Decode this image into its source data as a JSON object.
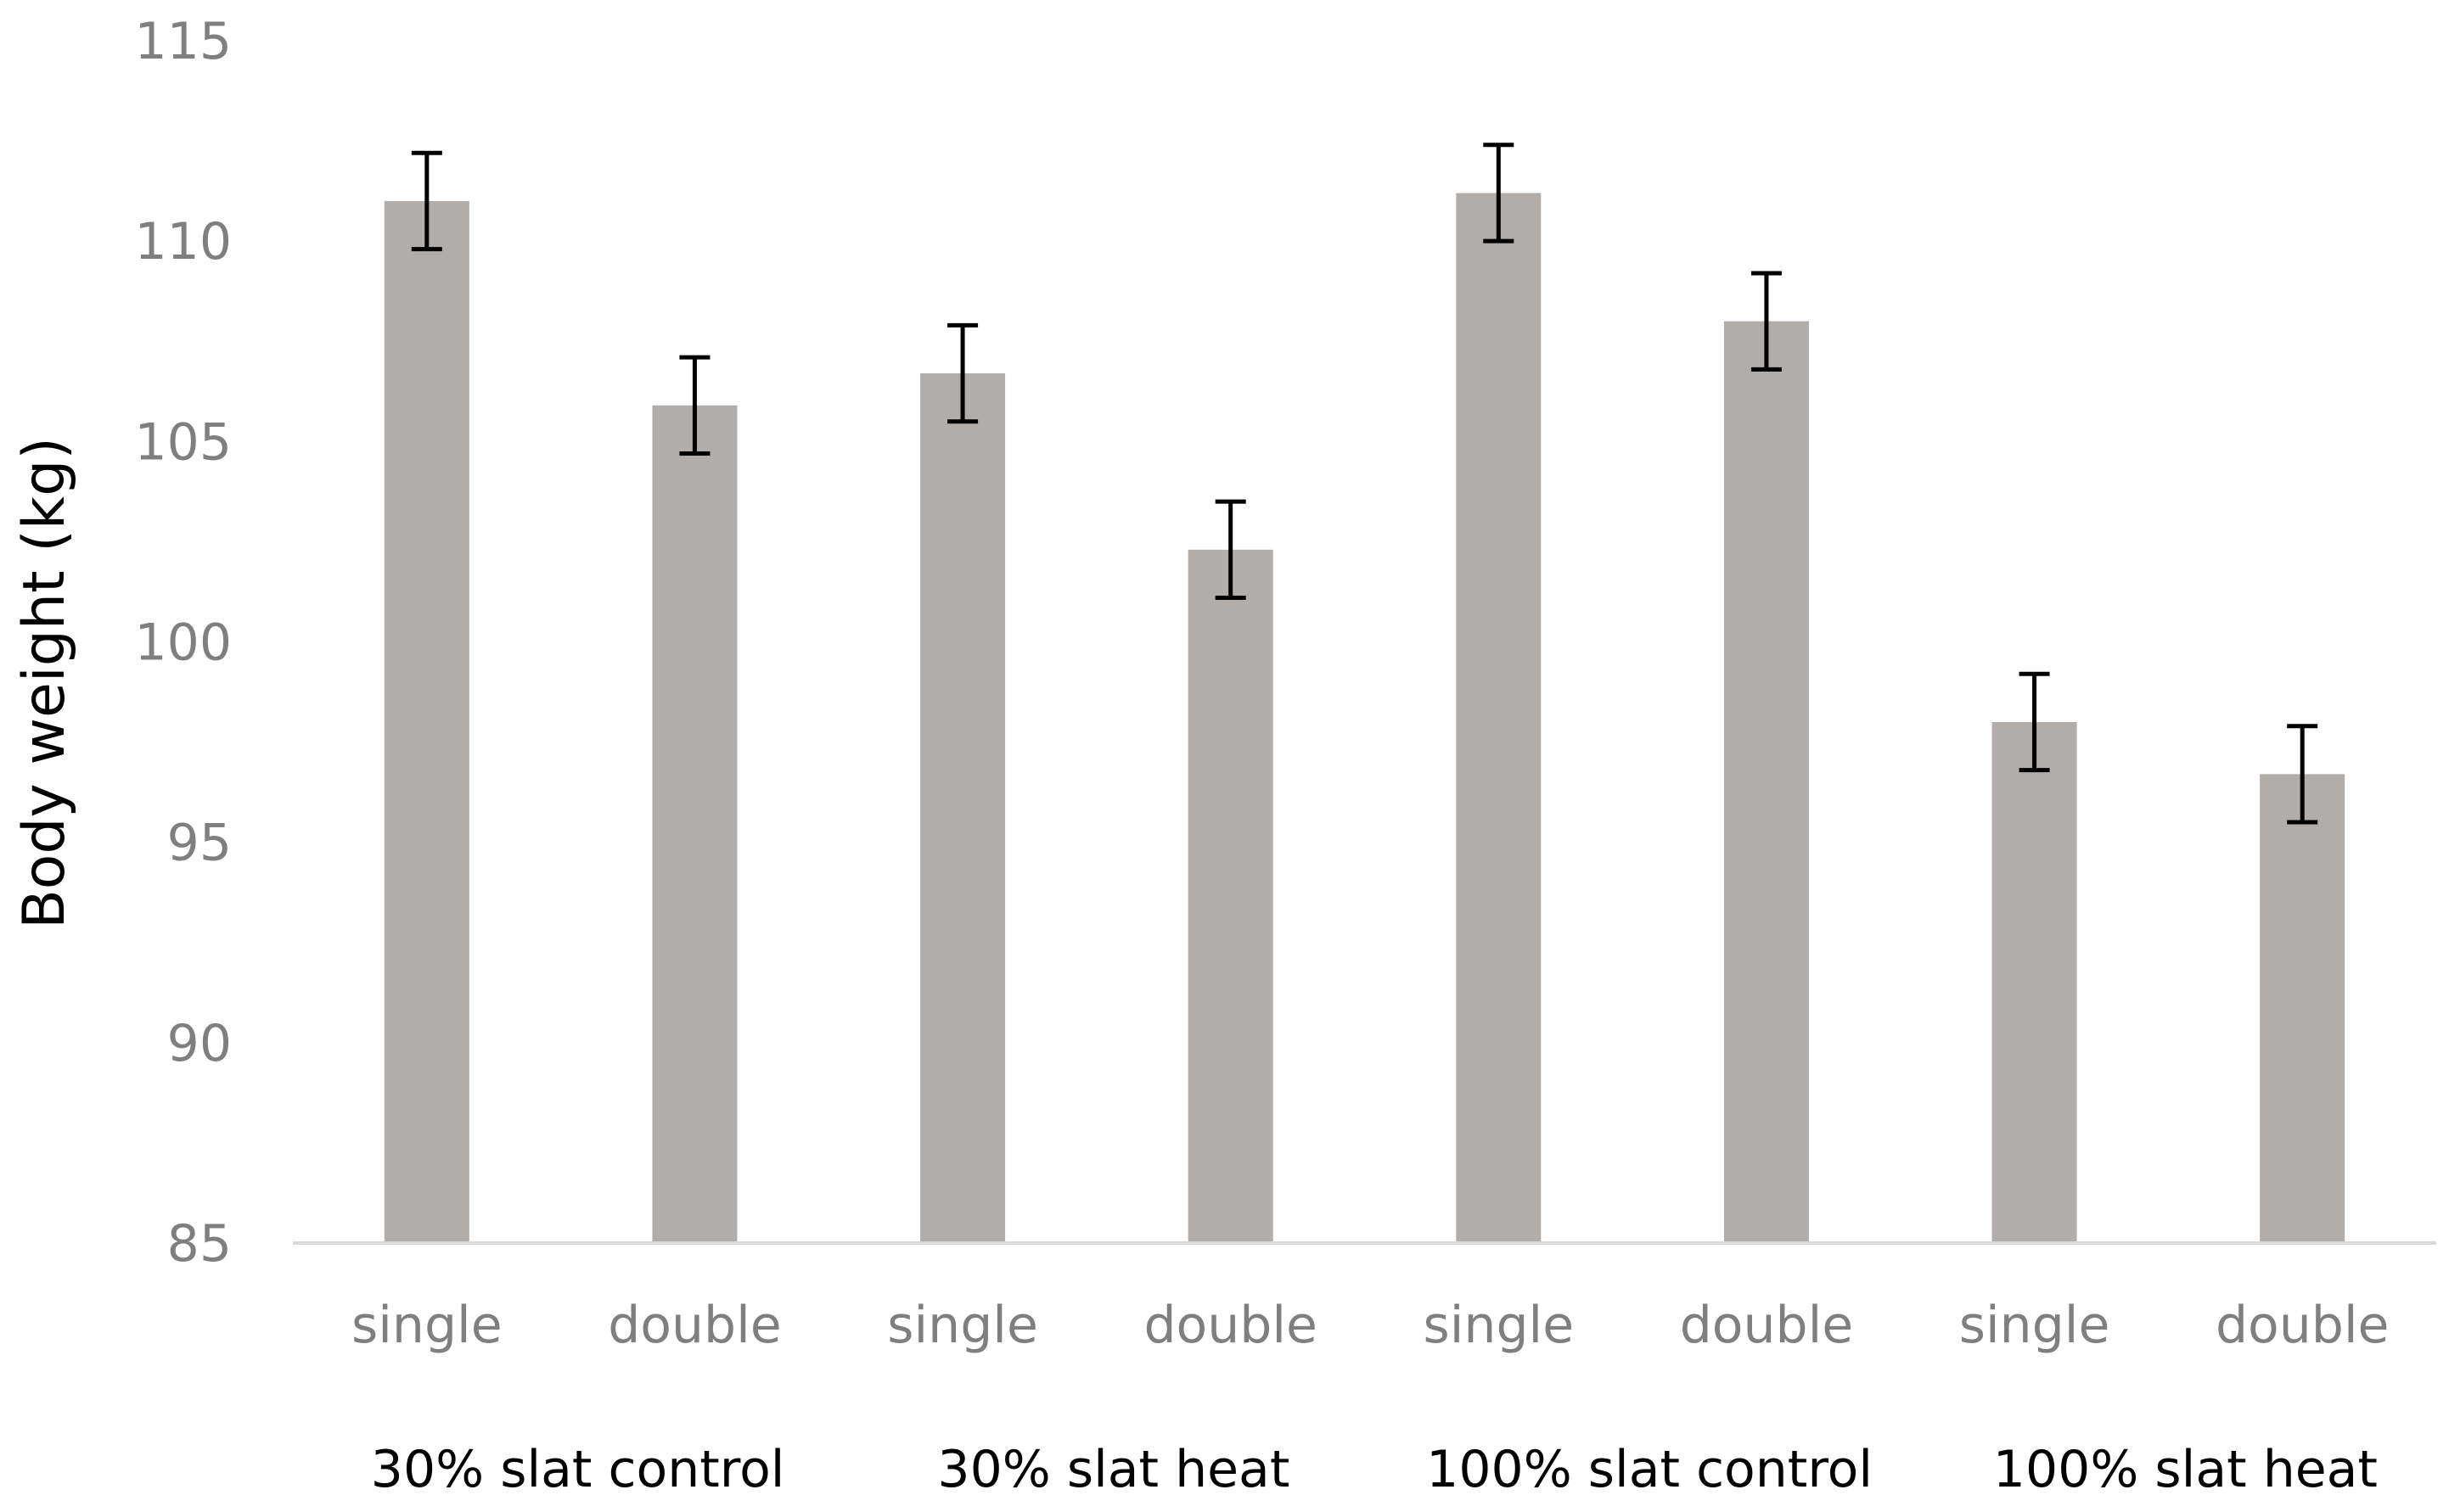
{
  "chart_data": {
    "type": "bar",
    "title": "",
    "xlabel": "",
    "ylabel": "Body weight (kg)",
    "ylim": [
      85,
      115
    ],
    "yticks": [
      85,
      90,
      95,
      100,
      105,
      110,
      115
    ],
    "grid": false,
    "legend": "none",
    "groups": [
      "30% slat control",
      "30% slat heat",
      "100% slat control",
      "100% slat heat"
    ],
    "categories": [
      "single",
      "double",
      "single",
      "double",
      "single",
      "double",
      "single",
      "double"
    ],
    "values": [
      111.0,
      105.9,
      106.7,
      102.3,
      111.2,
      108.0,
      98.0,
      96.7
    ],
    "errors": [
      1.2,
      1.2,
      1.2,
      1.2,
      1.2,
      1.2,
      1.2,
      1.2
    ],
    "colors": {
      "bar": "#b0adab",
      "error": "#000000",
      "axis": "#d9d9d9"
    }
  }
}
